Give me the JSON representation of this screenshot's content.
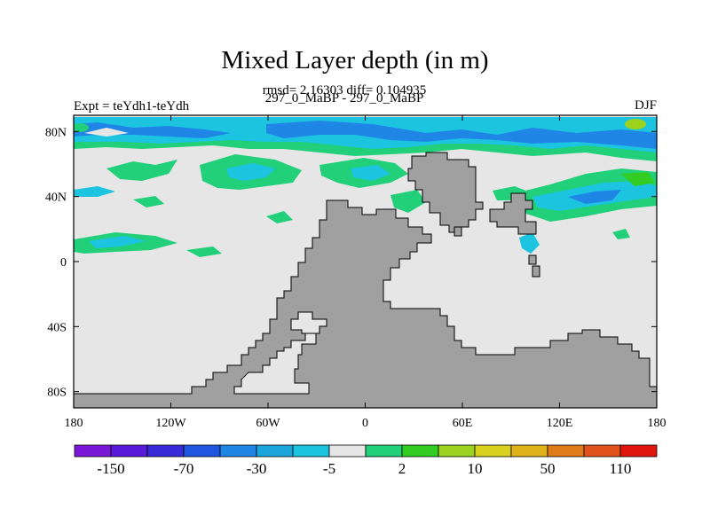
{
  "title": "Mixed Layer depth (in m)",
  "stats": "rmsd= 2.16303 diff= 0.104935",
  "experiment_pair": "297_0_MaBP - 297_0_MaBP",
  "experiment_label": "Expt = teYdh1-teYdh",
  "season": "DJF",
  "colors": {
    "land": "#a0a0a0",
    "ocean_neutral": "#e6e6e6",
    "coast": "#000000"
  },
  "map": {
    "projection": "cylindrical-equidistant",
    "lon_range": [
      -180,
      180
    ],
    "lat_range": [
      -90,
      90
    ],
    "x_ticks": [
      {
        "lon": -180,
        "label": "180"
      },
      {
        "lon": -120,
        "label": "120W"
      },
      {
        "lon": -60,
        "label": "60W"
      },
      {
        "lon": 0,
        "label": "0"
      },
      {
        "lon": 60,
        "label": "60E"
      },
      {
        "lon": 120,
        "label": "120E"
      },
      {
        "lon": 180,
        "label": "180"
      }
    ],
    "y_ticks": [
      {
        "lat": 80,
        "label": "80N"
      },
      {
        "lat": 40,
        "label": "40N"
      },
      {
        "lat": 0,
        "label": "0"
      },
      {
        "lat": -40,
        "label": "40S"
      },
      {
        "lat": -80,
        "label": "80S"
      }
    ]
  },
  "colorbar": {
    "colors": [
      "#7b18d8",
      "#5a1ad9",
      "#3a2bd8",
      "#1e56e0",
      "#1f86e6",
      "#1aa6dd",
      "#1cc4e0",
      "#e6e6e6",
      "#22d07a",
      "#33cc22",
      "#9ad21e",
      "#d8d21e",
      "#e0b21a",
      "#e07b1a",
      "#e0521a",
      "#e0160c"
    ],
    "labels": [
      {
        "boundary": 1,
        "text": "-150"
      },
      {
        "boundary": 3,
        "text": "-70"
      },
      {
        "boundary": 5,
        "text": "-30"
      },
      {
        "boundary": 7,
        "text": "-5"
      },
      {
        "boundary": 9,
        "text": "2"
      },
      {
        "boundary": 11,
        "text": "10"
      },
      {
        "boundary": 13,
        "text": "50"
      },
      {
        "boundary": 15,
        "text": "110"
      }
    ]
  }
}
